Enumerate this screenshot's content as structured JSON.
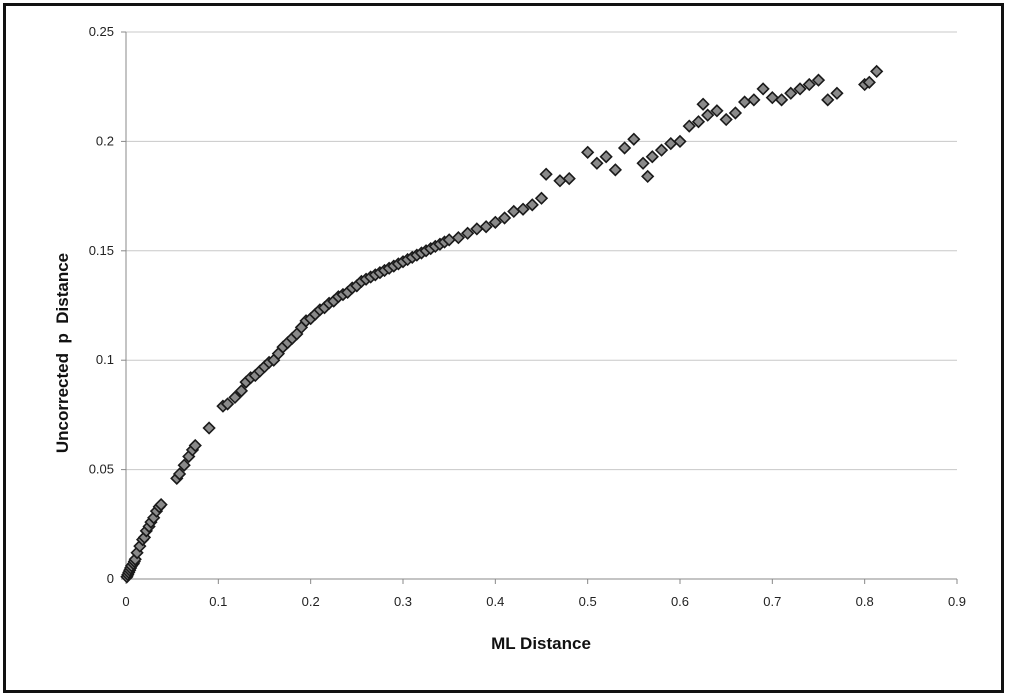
{
  "chart_data": {
    "type": "scatter",
    "xlabel": "ML Distance",
    "ylabel": "Uncorrected  p  Distance",
    "xlim": [
      0,
      0.9
    ],
    "ylim": [
      0,
      0.25
    ],
    "x_ticks": [
      "0",
      "0.1",
      "0.2",
      "0.3",
      "0.4",
      "0.5",
      "0.6",
      "0.7",
      "0.8",
      "0.9"
    ],
    "y_ticks": [
      "0",
      "0.05",
      "0.1",
      "0.15",
      "0.2",
      "0.25"
    ],
    "grid": "horizontal",
    "legend": "none",
    "marker": "diamond",
    "colors": {
      "marker_fill": "#8a8a8a",
      "marker_stroke": "#1a1a1a",
      "gridline": "#c8c8c8",
      "axis": "#888888"
    },
    "series": [
      {
        "values": [
          [
            0.001,
            0.001
          ],
          [
            0.002,
            0.002
          ],
          [
            0.003,
            0.003
          ],
          [
            0.004,
            0.004
          ],
          [
            0.005,
            0.005
          ],
          [
            0.006,
            0.006
          ],
          [
            0.008,
            0.007
          ],
          [
            0.009,
            0.008
          ],
          [
            0.01,
            0.009
          ],
          [
            0.012,
            0.012
          ],
          [
            0.015,
            0.015
          ],
          [
            0.018,
            0.018
          ],
          [
            0.02,
            0.019
          ],
          [
            0.022,
            0.022
          ],
          [
            0.025,
            0.024
          ],
          [
            0.027,
            0.026
          ],
          [
            0.03,
            0.028
          ],
          [
            0.033,
            0.031
          ],
          [
            0.036,
            0.033
          ],
          [
            0.038,
            0.034
          ],
          [
            0.055,
            0.046
          ],
          [
            0.058,
            0.048
          ],
          [
            0.063,
            0.052
          ],
          [
            0.068,
            0.056
          ],
          [
            0.072,
            0.059
          ],
          [
            0.075,
            0.061
          ],
          [
            0.09,
            0.069
          ],
          [
            0.105,
            0.079
          ],
          [
            0.11,
            0.08
          ],
          [
            0.118,
            0.083
          ],
          [
            0.125,
            0.086
          ],
          [
            0.13,
            0.09
          ],
          [
            0.135,
            0.092
          ],
          [
            0.14,
            0.093
          ],
          [
            0.145,
            0.095
          ],
          [
            0.15,
            0.097
          ],
          [
            0.155,
            0.099
          ],
          [
            0.16,
            0.1
          ],
          [
            0.165,
            0.103
          ],
          [
            0.17,
            0.106
          ],
          [
            0.175,
            0.108
          ],
          [
            0.18,
            0.11
          ],
          [
            0.185,
            0.112
          ],
          [
            0.19,
            0.115
          ],
          [
            0.195,
            0.118
          ],
          [
            0.2,
            0.119
          ],
          [
            0.205,
            0.121
          ],
          [
            0.21,
            0.123
          ],
          [
            0.215,
            0.124
          ],
          [
            0.22,
            0.126
          ],
          [
            0.225,
            0.127
          ],
          [
            0.23,
            0.129
          ],
          [
            0.235,
            0.13
          ],
          [
            0.24,
            0.131
          ],
          [
            0.245,
            0.133
          ],
          [
            0.25,
            0.134
          ],
          [
            0.255,
            0.136
          ],
          [
            0.26,
            0.137
          ],
          [
            0.265,
            0.138
          ],
          [
            0.27,
            0.139
          ],
          [
            0.275,
            0.14
          ],
          [
            0.28,
            0.141
          ],
          [
            0.285,
            0.142
          ],
          [
            0.29,
            0.143
          ],
          [
            0.295,
            0.144
          ],
          [
            0.3,
            0.145
          ],
          [
            0.305,
            0.146
          ],
          [
            0.31,
            0.147
          ],
          [
            0.315,
            0.148
          ],
          [
            0.32,
            0.149
          ],
          [
            0.325,
            0.15
          ],
          [
            0.33,
            0.151
          ],
          [
            0.335,
            0.152
          ],
          [
            0.34,
            0.153
          ],
          [
            0.345,
            0.154
          ],
          [
            0.35,
            0.155
          ],
          [
            0.36,
            0.156
          ],
          [
            0.37,
            0.158
          ],
          [
            0.38,
            0.16
          ],
          [
            0.39,
            0.161
          ],
          [
            0.4,
            0.163
          ],
          [
            0.41,
            0.165
          ],
          [
            0.42,
            0.168
          ],
          [
            0.43,
            0.169
          ],
          [
            0.44,
            0.171
          ],
          [
            0.45,
            0.174
          ],
          [
            0.455,
            0.185
          ],
          [
            0.47,
            0.182
          ],
          [
            0.48,
            0.183
          ],
          [
            0.5,
            0.195
          ],
          [
            0.51,
            0.19
          ],
          [
            0.52,
            0.193
          ],
          [
            0.53,
            0.187
          ],
          [
            0.54,
            0.197
          ],
          [
            0.55,
            0.201
          ],
          [
            0.56,
            0.19
          ],
          [
            0.565,
            0.184
          ],
          [
            0.57,
            0.193
          ],
          [
            0.58,
            0.196
          ],
          [
            0.59,
            0.199
          ],
          [
            0.6,
            0.2
          ],
          [
            0.61,
            0.207
          ],
          [
            0.62,
            0.209
          ],
          [
            0.625,
            0.217
          ],
          [
            0.63,
            0.212
          ],
          [
            0.64,
            0.214
          ],
          [
            0.65,
            0.21
          ],
          [
            0.66,
            0.213
          ],
          [
            0.67,
            0.218
          ],
          [
            0.68,
            0.219
          ],
          [
            0.69,
            0.224
          ],
          [
            0.7,
            0.22
          ],
          [
            0.71,
            0.219
          ],
          [
            0.72,
            0.222
          ],
          [
            0.73,
            0.224
          ],
          [
            0.74,
            0.226
          ],
          [
            0.75,
            0.228
          ],
          [
            0.76,
            0.219
          ],
          [
            0.77,
            0.222
          ],
          [
            0.8,
            0.226
          ],
          [
            0.805,
            0.227
          ],
          [
            0.813,
            0.232
          ]
        ]
      }
    ]
  }
}
